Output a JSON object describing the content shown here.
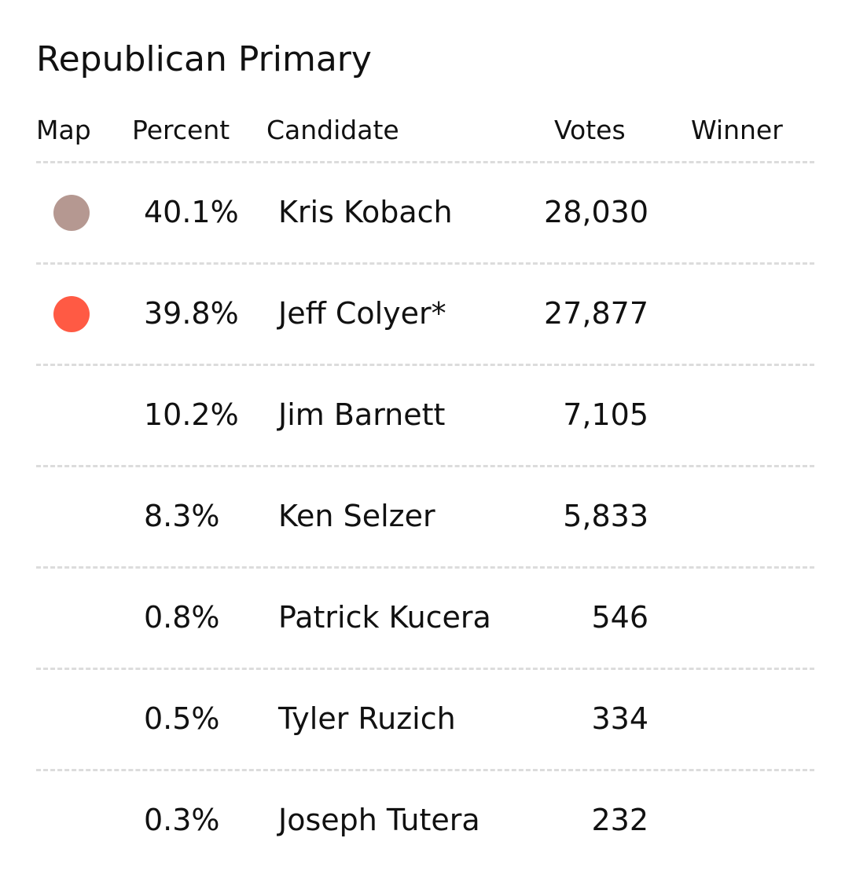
{
  "title": "Republican Primary",
  "columns": {
    "map": "Map",
    "percent": "Percent",
    "candidate": "Candidate",
    "votes": "Votes",
    "winner": "Winner"
  },
  "rows": [
    {
      "percent": "40.1%",
      "candidate": "Kris Kobach",
      "votes": "28,030",
      "winner": "",
      "map_color": "#b59891"
    },
    {
      "percent": "39.8%",
      "candidate": "Jeff Colyer*",
      "votes": "27,877",
      "winner": "",
      "map_color": "#ff5a44"
    },
    {
      "percent": "10.2%",
      "candidate": "Jim Barnett",
      "votes": "7,105",
      "winner": "",
      "map_color": null
    },
    {
      "percent": "8.3%",
      "candidate": "Ken Selzer",
      "votes": "5,833",
      "winner": "",
      "map_color": null
    },
    {
      "percent": "0.8%",
      "candidate": "Patrick Kucera",
      "votes": "546",
      "winner": "",
      "map_color": null
    },
    {
      "percent": "0.5%",
      "candidate": "Tyler Ruzich",
      "votes": "334",
      "winner": "",
      "map_color": null
    },
    {
      "percent": "0.3%",
      "candidate": "Joseph Tutera",
      "votes": "232",
      "winner": "",
      "map_color": null
    }
  ]
}
